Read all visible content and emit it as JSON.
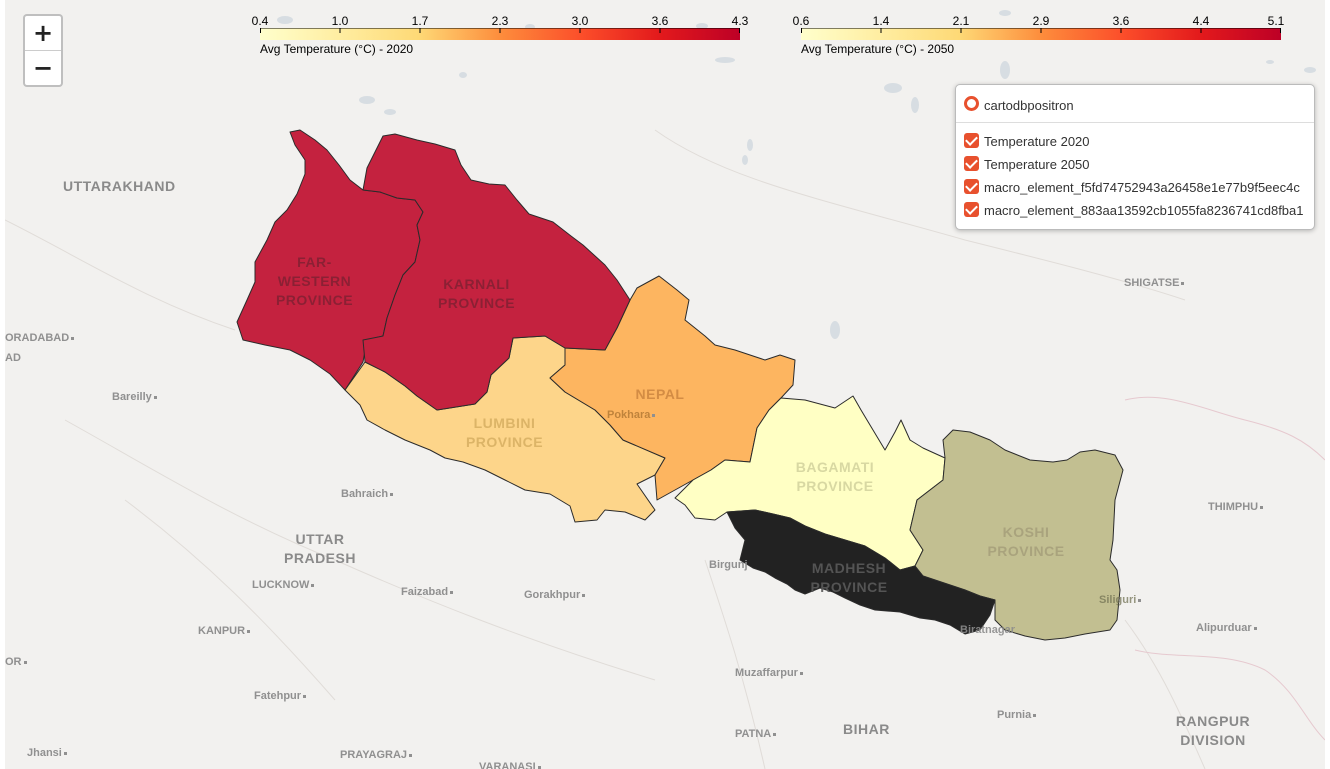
{
  "zoom": {
    "in_label": "+",
    "out_label": "−"
  },
  "legend_2020": {
    "ticks": [
      "0.4",
      "1.0",
      "1.7",
      "2.3",
      "3.0",
      "3.6",
      "4.3"
    ],
    "caption": "Avg Temperature (°C) - 2020"
  },
  "legend_2050": {
    "ticks": [
      "0.6",
      "1.4",
      "2.1",
      "2.9",
      "3.6",
      "4.4",
      "5.1"
    ],
    "caption": "Avg Temperature (°C) - 2050"
  },
  "layer_control": {
    "base_layer": "cartodbpositron",
    "overlays": [
      "Temperature 2020",
      "Temperature 2050",
      "macro_element_f5fd74752943a26458e1e77b9f5eec4c",
      "macro_element_883aa13592cb1055fa8236741cd8fba1"
    ]
  },
  "colors": {
    "scale_low": "#ffffcc",
    "scale_mid": "#fd8d3c",
    "scale_high": "#bd0026",
    "accent": "#e8512e"
  },
  "provinces": [
    {
      "line1": "FAR-",
      "line2": "WESTERN",
      "line3": "PROVINCE",
      "fill": "#c4223f"
    },
    {
      "line1": "KARNALI",
      "line2": "PROVINCE",
      "fill": "#c4223f"
    },
    {
      "line1": "LUMBINI",
      "line2": "PROVINCE",
      "fill": "#fdd58a"
    },
    {
      "line1": "NEPAL",
      "fill": "#fdb560"
    },
    {
      "line1": "BAGAMATI",
      "line2": "PROVINCE",
      "fill": "#ffffc4"
    },
    {
      "line1": "KOSHI",
      "line2": "PROVINCE",
      "fill": "#c2bf91"
    },
    {
      "line1": "MADHESH",
      "line2": "PROVINCE",
      "fill": "#222222"
    }
  ],
  "regions": [
    {
      "line1": "UTTARAKHAND"
    },
    {
      "line1": "UTTAR",
      "line2": "PRADESH"
    },
    {
      "line1": "BIHAR"
    },
    {
      "line1": "RANGPUR",
      "line2": "DIVISION"
    }
  ],
  "cities": [
    "SHIGATSE",
    "ORADABAD",
    "AD",
    "Bareilly",
    "Bahraich",
    "LUCKNOW",
    "Faizabad",
    "Gorakhpur",
    "KANPUR",
    "Fatehpur",
    "PRAYAGRAJ",
    "VARANASI",
    "Jhansi",
    "Muzaffarpur",
    "PATNA",
    "Purnia",
    "Alipurduar",
    "THIMPHU",
    "Pokhara",
    "Birgunj",
    "Siliguri",
    "Biratnagar",
    "OR"
  ]
}
